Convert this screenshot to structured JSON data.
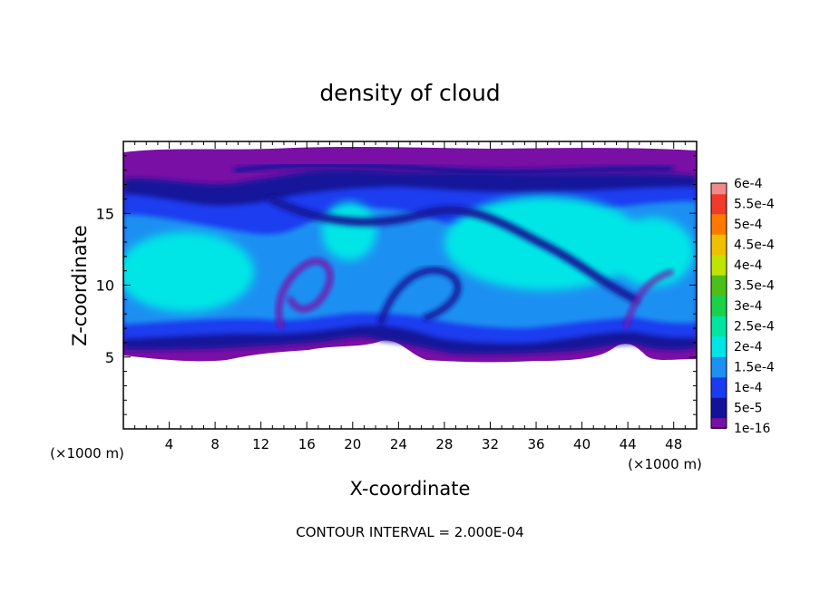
{
  "chart_data": {
    "type": "heatmap",
    "title": "density of cloud",
    "xlabel": "X-coordinate",
    "ylabel": "Z-coordinate",
    "x_unit_label": "(×1000 m)",
    "y_unit_label": "(×1000 m)",
    "x_ticks": [
      "4",
      "8",
      "12",
      "16",
      "20",
      "24",
      "28",
      "32",
      "36",
      "40",
      "44",
      "48"
    ],
    "y_ticks": [
      "5",
      "10",
      "15"
    ],
    "xlim": [
      0,
      50
    ],
    "ylim": [
      0,
      20
    ],
    "footer": "CONTOUR INTERVAL = 2.000E-04",
    "legend": {
      "placement": "right",
      "levels": [
        "1e-16",
        "5e-5",
        "1e-4",
        "1.5e-4",
        "2e-4",
        "2.5e-4",
        "3e-4",
        "3.5e-4",
        "4e-4",
        "4.5e-4",
        "5e-4",
        "5.5e-4",
        "6e-4"
      ],
      "colors": [
        "#7a0fa6",
        "#12129a",
        "#1a3cf0",
        "#1e90f2",
        "#00e6e6",
        "#00e6a0",
        "#18d24a",
        "#4cc018",
        "#c0e400",
        "#f0c000",
        "#ff7800",
        "#f03a2a",
        "#f28a8a"
      ]
    },
    "field": {
      "cloud_base_z": 5,
      "cloud_top_z": 19.4,
      "max_value_approx": "2e-4"
    }
  }
}
